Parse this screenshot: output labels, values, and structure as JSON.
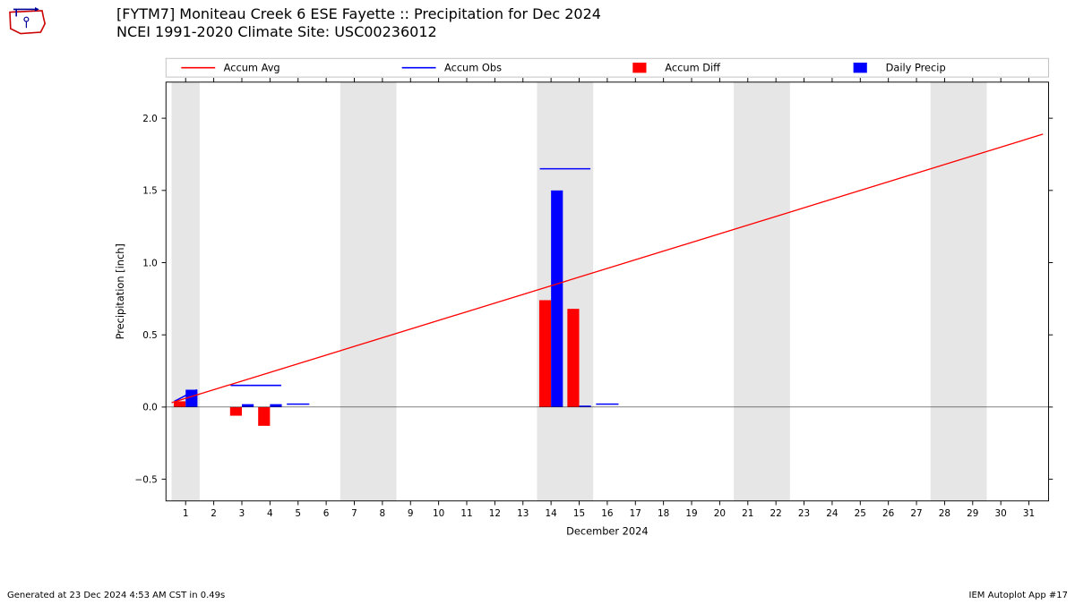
{
  "title_line1": "[FYTM7] Moniteau Creek 6 ESE Fayette :: Precipitation for Dec 2024",
  "title_line2": "NCEI 1991-2020 Climate Site: USC00236012",
  "footer_left": "Generated at 23 Dec 2024 4:53 AM CST in 0.49s",
  "footer_right": "IEM Autoplot App #17",
  "legend": {
    "items": [
      {
        "label": "Accum Avg",
        "type": "line",
        "color": "#ff0000"
      },
      {
        "label": "Accum Obs",
        "type": "line",
        "color": "#0000ff"
      },
      {
        "label": "Accum Diff",
        "type": "bar",
        "color": "#ff0000"
      },
      {
        "label": "Daily Precip",
        "type": "bar",
        "color": "#0000ff"
      }
    ]
  },
  "chart": {
    "type": "bar+line",
    "xlabel": "December 2024",
    "ylabel": "Precipitation [inch]",
    "xlim": [
      0.3,
      31.7
    ],
    "ylim": [
      -0.65,
      2.25
    ],
    "xticks": [
      1,
      2,
      3,
      4,
      5,
      6,
      7,
      8,
      9,
      10,
      11,
      12,
      13,
      14,
      15,
      16,
      17,
      18,
      19,
      20,
      21,
      22,
      23,
      24,
      25,
      26,
      27,
      28,
      29,
      30,
      31
    ],
    "yticks": [
      -0.5,
      0.0,
      0.5,
      1.0,
      1.5,
      2.0
    ],
    "ytick_labels": [
      "−0.5",
      "0.0",
      "0.5",
      "1.0",
      "1.5",
      "2.0"
    ],
    "background_color": "#ffffff",
    "weekend_band_color": "#e6e6e6",
    "weekend_bands": [
      [
        0.5,
        1.5
      ],
      [
        6.5,
        8.5
      ],
      [
        13.5,
        15.5
      ],
      [
        20.5,
        22.5
      ],
      [
        27.5,
        29.5
      ]
    ],
    "axis_color": "#000000",
    "tick_fontsize": 11,
    "label_fontsize": 12,
    "accum_avg": {
      "color": "#ff0000",
      "width": 1.4,
      "points": [
        [
          0.5,
          0.03
        ],
        [
          31.5,
          1.89
        ]
      ]
    },
    "accum_obs": {
      "color": "#0000ff",
      "width": 1.6,
      "segments": [
        [
          [
            0.6,
            0.04
          ],
          [
            1.4,
            0.12
          ]
        ],
        [
          [
            2.6,
            0.15
          ],
          [
            4.4,
            0.15
          ]
        ],
        [
          [
            4.6,
            0.02
          ],
          [
            5.4,
            0.02
          ]
        ],
        [
          [
            13.6,
            1.65
          ],
          [
            15.4,
            1.65
          ]
        ],
        [
          [
            15.6,
            0.02
          ],
          [
            16.4,
            0.02
          ]
        ]
      ]
    },
    "bars_red": {
      "color": "#ff0000",
      "width": 0.42,
      "data": [
        {
          "x": 0.79,
          "y": 0.04
        },
        {
          "x": 2.79,
          "y": -0.06
        },
        {
          "x": 3.79,
          "y": -0.13
        },
        {
          "x": 13.79,
          "y": 0.74
        },
        {
          "x": 14.79,
          "y": 0.68
        }
      ]
    },
    "bars_blue": {
      "color": "#0000ff",
      "width": 0.42,
      "data": [
        {
          "x": 1.21,
          "y": 0.12
        },
        {
          "x": 3.21,
          "y": 0.02
        },
        {
          "x": 4.21,
          "y": 0.02
        },
        {
          "x": 14.21,
          "y": 1.5
        },
        {
          "x": 15.21,
          "y": 0.01
        }
      ]
    }
  }
}
